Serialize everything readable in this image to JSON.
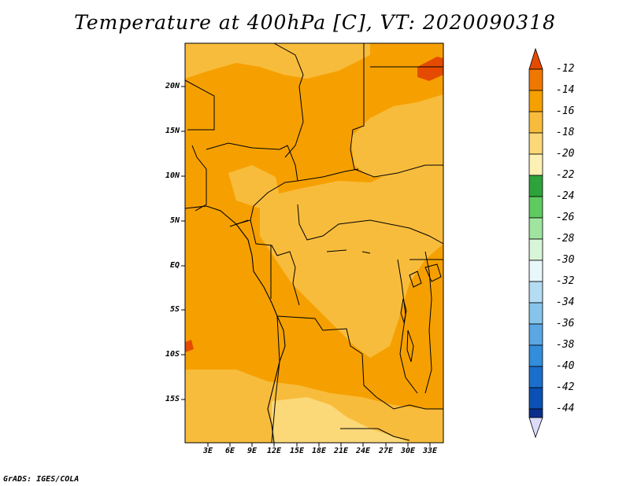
{
  "title": "Temperature at 400hPa [C], VT: 2020090318",
  "credit": "GrADS: IGES/COLA",
  "map": {
    "lat_labels": [
      "20N",
      "15N",
      "10N",
      "5N",
      "EQ",
      "5S",
      "10S",
      "15S"
    ],
    "lon_labels": [
      "3E",
      "6E",
      "9E",
      "12E",
      "15E",
      "18E",
      "21E",
      "24E",
      "27E",
      "30E",
      "33E"
    ]
  },
  "colorbar": {
    "labels": [
      "-12",
      "-14",
      "-16",
      "-18",
      "-20",
      "-22",
      "-24",
      "-26",
      "-28",
      "-30",
      "-32",
      "-34",
      "-36",
      "-38",
      "-40",
      "-42",
      "-44"
    ],
    "colors": [
      "#e54b00",
      "#f07800",
      "#f5a000",
      "#f8bc3c",
      "#fbd878",
      "#fdf0b4",
      "#2ea33c",
      "#5fca5f",
      "#9fe59f",
      "#d8f5d8",
      "#e8f7fb",
      "#b4ddf3",
      "#87c4ec",
      "#5aa7e4",
      "#328ddb",
      "#1a6fcb",
      "#0b50b4",
      "#0a2e8c",
      "#dcdcfa"
    ],
    "color_meaning": {
      "top_arrow": "#e54b00",
      "bottom_arrow": "#dcdcfa"
    }
  }
}
